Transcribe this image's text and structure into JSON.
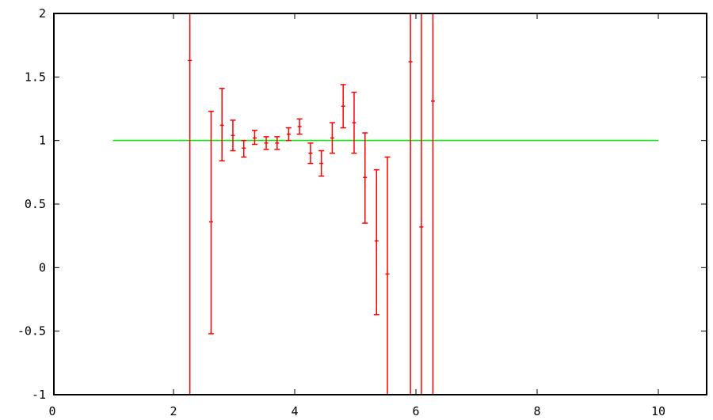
{
  "chart_data": {
    "type": "scatter",
    "title": "",
    "xlabel": "",
    "ylabel": "",
    "xlim": [
      0,
      11
    ],
    "ylim": [
      -1,
      2
    ],
    "x_ticks": [
      0,
      2,
      4,
      6,
      8,
      10
    ],
    "y_ticks": [
      -1,
      -0.5,
      0,
      0.5,
      1,
      1.5,
      2
    ],
    "x_tick_labels": [
      "0",
      "2",
      "4",
      "6",
      "8",
      "10"
    ],
    "y_tick_labels": [
      "-1",
      "-0.5",
      "0",
      "0.5",
      "1",
      "1.5",
      "2"
    ],
    "grid": false,
    "colors": {
      "points": "#ff0000",
      "reference_line": "#00ee00",
      "frame": "#000000"
    },
    "reference_line": {
      "x": [
        1,
        10
      ],
      "y": [
        1,
        1
      ]
    },
    "series": [
      {
        "points": [
          {
            "x": 2.27,
            "y": 1.63,
            "ylo": -1.0,
            "yhi": 2.0
          },
          {
            "x": 2.62,
            "y": 0.36,
            "ylo": -0.52,
            "yhi": 1.23
          },
          {
            "x": 2.8,
            "y": 1.12,
            "ylo": 0.84,
            "yhi": 1.41
          },
          {
            "x": 2.98,
            "y": 1.04,
            "ylo": 0.92,
            "yhi": 1.16
          },
          {
            "x": 3.16,
            "y": 0.94,
            "ylo": 0.87,
            "yhi": 1.0
          },
          {
            "x": 3.34,
            "y": 1.02,
            "ylo": 0.97,
            "yhi": 1.08
          },
          {
            "x": 3.53,
            "y": 0.98,
            "ylo": 0.93,
            "yhi": 1.03
          },
          {
            "x": 3.71,
            "y": 0.98,
            "ylo": 0.93,
            "yhi": 1.03
          },
          {
            "x": 3.9,
            "y": 1.05,
            "ylo": 1.0,
            "yhi": 1.1
          },
          {
            "x": 4.08,
            "y": 1.11,
            "ylo": 1.05,
            "yhi": 1.17
          },
          {
            "x": 4.26,
            "y": 0.9,
            "ylo": 0.82,
            "yhi": 0.98
          },
          {
            "x": 4.44,
            "y": 0.82,
            "ylo": 0.72,
            "yhi": 0.92
          },
          {
            "x": 4.62,
            "y": 1.02,
            "ylo": 0.9,
            "yhi": 1.14
          },
          {
            "x": 4.8,
            "y": 1.27,
            "ylo": 1.1,
            "yhi": 1.44
          },
          {
            "x": 4.98,
            "y": 1.14,
            "ylo": 0.9,
            "yhi": 1.38
          },
          {
            "x": 5.16,
            "y": 0.71,
            "ylo": 0.35,
            "yhi": 1.06
          },
          {
            "x": 5.35,
            "y": 0.21,
            "ylo": -0.37,
            "yhi": 0.77
          },
          {
            "x": 5.53,
            "y": -0.05,
            "ylo": -1.0,
            "yhi": 0.87
          },
          {
            "x": 5.91,
            "y": 1.62,
            "ylo": -1.0,
            "yhi": 2.0
          },
          {
            "x": 6.09,
            "y": 0.32,
            "ylo": -1.0,
            "yhi": 2.0
          },
          {
            "x": 6.28,
            "y": 1.31,
            "ylo": -1.0,
            "yhi": 2.0
          }
        ]
      }
    ]
  }
}
